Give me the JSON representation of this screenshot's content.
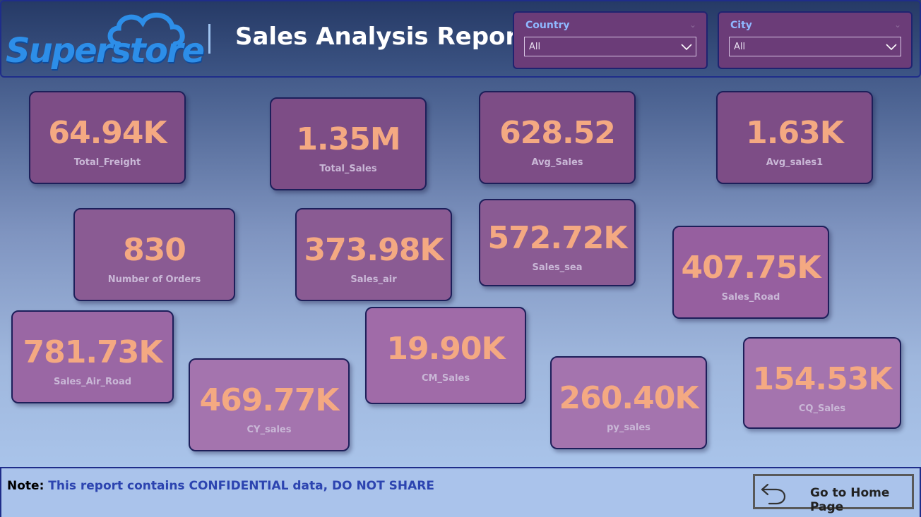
{
  "header": {
    "logo_text": "Superstore",
    "title": "Sales Analysis Report"
  },
  "slicers": {
    "country": {
      "label": "Country",
      "value": "All"
    },
    "city": {
      "label": "City",
      "value": "All"
    }
  },
  "cards": [
    {
      "value": "64.94K",
      "label": "Total_Freight"
    },
    {
      "value": "1.35M",
      "label": "Total_Sales"
    },
    {
      "value": "628.52",
      "label": "Avg_Sales"
    },
    {
      "value": "1.63K",
      "label": "Avg_sales1"
    },
    {
      "value": "830",
      "label": "Number of Orders"
    },
    {
      "value": "373.98K",
      "label": "Sales_air"
    },
    {
      "value": "572.72K",
      "label": "Sales_sea"
    },
    {
      "value": "407.75K",
      "label": "Sales_Road"
    },
    {
      "value": "781.73K",
      "label": "Sales_Air_Road"
    },
    {
      "value": "19.90K",
      "label": "CM_Sales"
    },
    {
      "value": "469.77K",
      "label": "CY_sales"
    },
    {
      "value": "260.40K",
      "label": "py_sales"
    },
    {
      "value": "154.53K",
      "label": "CQ_Sales"
    }
  ],
  "footer": {
    "note_label": "Note:",
    "note_text": "This report contains CONFIDENTIAL data, DO NOT SHARE",
    "home_button_label": "Go to Home Page"
  },
  "colors": {
    "card_bg": "#8a5a92",
    "card_value": "#f4a982",
    "slicer_bg": "#6b3c78",
    "accent_blue": "#2d8ee8"
  }
}
